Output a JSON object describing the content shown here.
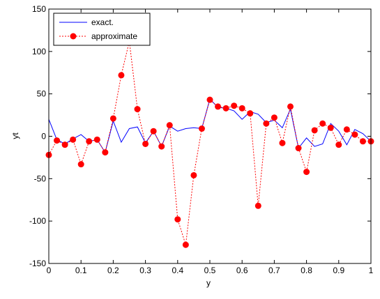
{
  "chart_data": {
    "type": "line",
    "xlabel": "y",
    "ylabel": "yt",
    "xlim": [
      0,
      1
    ],
    "ylim": [
      -150,
      150
    ],
    "xticks": [
      0,
      0.1,
      0.2,
      0.3,
      0.4,
      0.5,
      0.6,
      0.7,
      0.8,
      0.9,
      1
    ],
    "xtick_labels": [
      "0",
      "0.1",
      "0.2",
      "0.3",
      "0.4",
      "0.5",
      "0.6",
      "0.7",
      "0.8",
      "0.9",
      "1"
    ],
    "yticks": [
      -150,
      -100,
      -50,
      0,
      50,
      100,
      150
    ],
    "ytick_labels": [
      "-150",
      "-100",
      "-50",
      "0",
      "50",
      "100",
      "150"
    ],
    "grid": false,
    "legend_position": "top-left",
    "series": [
      {
        "name": "exact.",
        "style": "solid",
        "color": "#0000ff",
        "x": [
          0,
          0.025,
          0.05,
          0.075,
          0.1,
          0.125,
          0.15,
          0.175,
          0.2,
          0.225,
          0.25,
          0.275,
          0.3,
          0.325,
          0.35,
          0.375,
          0.4,
          0.425,
          0.45,
          0.475,
          0.5,
          0.525,
          0.55,
          0.575,
          0.6,
          0.625,
          0.65,
          0.675,
          0.7,
          0.725,
          0.75,
          0.775,
          0.8,
          0.825,
          0.85,
          0.875,
          0.9,
          0.925,
          0.95,
          0.975,
          1
        ],
        "y": [
          20,
          -4,
          -9,
          -3,
          2,
          -6,
          -4,
          -19,
          18,
          -7,
          9,
          11,
          -8,
          6,
          -12,
          12,
          6,
          9,
          10,
          9,
          44,
          34,
          33,
          30,
          20,
          29,
          26,
          16,
          19,
          10,
          32,
          -14,
          -2,
          -12,
          -9,
          15,
          6,
          -10,
          8,
          3,
          -6
        ]
      },
      {
        "name": "approximate",
        "style": "dotted",
        "color": "#ff0000",
        "marker": "circle",
        "x": [
          0,
          0.025,
          0.05,
          0.075,
          0.1,
          0.125,
          0.15,
          0.175,
          0.2,
          0.225,
          0.25,
          0.275,
          0.3,
          0.325,
          0.35,
          0.375,
          0.4,
          0.425,
          0.45,
          0.475,
          0.5,
          0.525,
          0.55,
          0.575,
          0.6,
          0.625,
          0.65,
          0.675,
          0.7,
          0.725,
          0.75,
          0.775,
          0.8,
          0.825,
          0.85,
          0.875,
          0.9,
          0.925,
          0.95,
          0.975,
          1
        ],
        "y": [
          -22,
          -5,
          -10,
          -4,
          -33,
          -6,
          -4,
          -19,
          21,
          72,
          112,
          32,
          -9,
          6,
          -12,
          13,
          -98,
          -128,
          -46,
          9,
          43,
          35,
          33,
          36,
          33,
          27,
          -82,
          15,
          22,
          -8,
          35,
          -14,
          -42,
          7,
          15,
          10,
          -10,
          8,
          2,
          -6,
          -6
        ]
      }
    ]
  }
}
